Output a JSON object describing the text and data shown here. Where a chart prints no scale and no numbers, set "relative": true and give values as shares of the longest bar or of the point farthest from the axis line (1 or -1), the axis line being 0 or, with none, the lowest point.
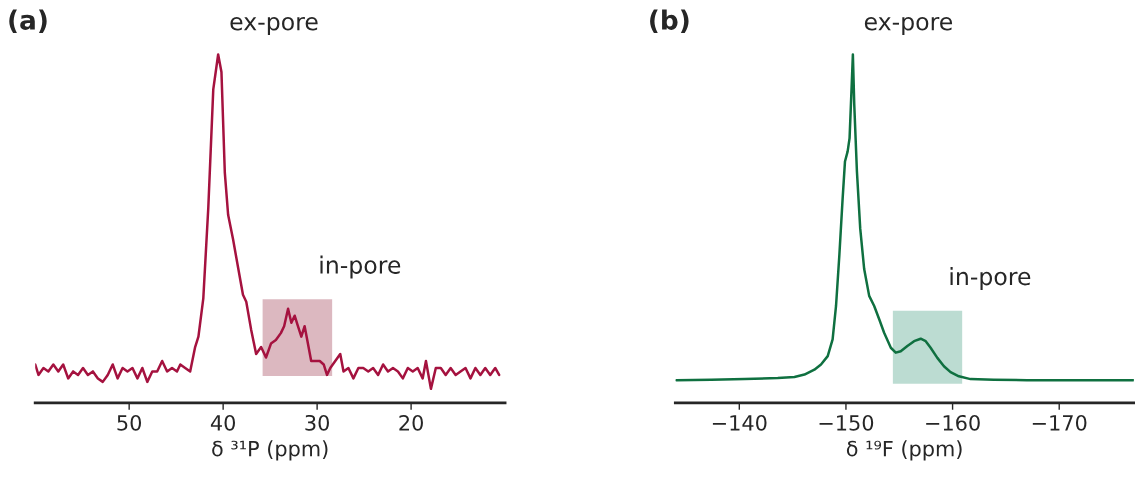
{
  "chart_data": [
    {
      "type": "line",
      "title": "(a)",
      "xlabel": "δ ³¹P (ppm)",
      "relative": true,
      "xlim": [
        60,
        10
      ],
      "xticks": [
        50,
        40,
        30,
        20
      ],
      "grid": false,
      "legend": false,
      "annotations": [
        {
          "text": "ex-pore",
          "x": 40.5,
          "y": 1.0
        }
      ],
      "bands": [
        {
          "axis": "x",
          "from": 35.8,
          "to": 28.4,
          "label": "in-pore",
          "color": "#dcb8c0"
        }
      ],
      "x": [
        60.0,
        59.65,
        59.12,
        58.6,
        58.07,
        57.54,
        57.02,
        56.49,
        55.96,
        55.44,
        54.91,
        54.39,
        53.86,
        53.33,
        52.81,
        52.28,
        51.75,
        51.23,
        50.7,
        50.18,
        49.65,
        49.12,
        48.6,
        48.07,
        47.54,
        47.02,
        46.49,
        45.96,
        45.44,
        44.91,
        44.56,
        44.04,
        43.51,
        42.98,
        42.63,
        42.11,
        41.58,
        41.05,
        40.53,
        40.18,
        39.82,
        39.47,
        38.95,
        38.42,
        37.89,
        37.54,
        37.02,
        36.49,
        35.96,
        35.44,
        34.91,
        34.39,
        33.86,
        33.51,
        33.09,
        32.74,
        32.39,
        32.04,
        31.68,
        31.33,
        31.05,
        30.63,
        30.18,
        29.72,
        29.3,
        28.95,
        28.6,
        28.07,
        27.54,
        27.19,
        26.67,
        26.14,
        25.61,
        25.09,
        24.56,
        24.04,
        23.51,
        22.98,
        22.46,
        21.93,
        21.4,
        20.88,
        20.35,
        19.82,
        19.3,
        18.77,
        18.42,
        17.89,
        17.37,
        16.84,
        16.32,
        15.79,
        15.26,
        14.74,
        14.21,
        13.68,
        13.16,
        12.63,
        12.11,
        11.58,
        11.05,
        10.63
      ],
      "series": [
        {
          "color": "#a5123f",
          "values": [
            0.11,
            0.08,
            0.1,
            0.09,
            0.11,
            0.09,
            0.11,
            0.07,
            0.09,
            0.08,
            0.1,
            0.08,
            0.09,
            0.07,
            0.06,
            0.08,
            0.11,
            0.07,
            0.1,
            0.09,
            0.1,
            0.07,
            0.1,
            0.06,
            0.09,
            0.09,
            0.12,
            0.09,
            0.1,
            0.09,
            0.11,
            0.1,
            0.09,
            0.16,
            0.19,
            0.3,
            0.56,
            0.9,
            1.0,
            0.95,
            0.66,
            0.54,
            0.47,
            0.39,
            0.31,
            0.29,
            0.21,
            0.14,
            0.16,
            0.13,
            0.17,
            0.18,
            0.2,
            0.22,
            0.27,
            0.23,
            0.25,
            0.22,
            0.19,
            0.22,
            0.18,
            0.12,
            0.12,
            0.12,
            0.11,
            0.08,
            0.1,
            0.12,
            0.14,
            0.09,
            0.1,
            0.07,
            0.1,
            0.1,
            0.09,
            0.1,
            0.08,
            0.11,
            0.09,
            0.1,
            0.09,
            0.07,
            0.1,
            0.09,
            0.1,
            0.07,
            0.12,
            0.04,
            0.1,
            0.1,
            0.08,
            0.1,
            0.08,
            0.09,
            0.1,
            0.07,
            0.1,
            0.08,
            0.1,
            0.08,
            0.1,
            0.08
          ]
        }
      ]
    },
    {
      "type": "line",
      "title": "(b)",
      "xlabel": "δ ¹⁹F (ppm)",
      "relative": true,
      "xlim": [
        -134,
        -177
      ],
      "xticks": [
        {
          "value": -140,
          "label": "−140"
        },
        {
          "value": -150,
          "label": "−150"
        },
        {
          "value": -160,
          "label": "−160"
        },
        {
          "value": -170,
          "label": "−170"
        }
      ],
      "grid": false,
      "legend": false,
      "annotations": [
        {
          "text": "ex-pore",
          "x": -150.65,
          "y": 1.0
        }
      ],
      "bands": [
        {
          "axis": "x",
          "from": -154.4,
          "to": -160.9,
          "label": "in-pore",
          "color": "#bcdcd2"
        }
      ],
      "x": [
        -134.11,
        -137.38,
        -140.5,
        -143.61,
        -145.17,
        -146.11,
        -147.04,
        -147.66,
        -148.29,
        -148.75,
        -149.07,
        -149.38,
        -149.69,
        -149.91,
        -150.16,
        -150.34,
        -150.53,
        -150.65,
        -150.78,
        -151.03,
        -151.34,
        -151.71,
        -152.18,
        -152.65,
        -153.12,
        -153.58,
        -154.21,
        -154.67,
        -155.14,
        -155.76,
        -156.39,
        -157.01,
        -157.48,
        -157.94,
        -158.57,
        -159.19,
        -159.81,
        -160.59,
        -161.68,
        -163.86,
        -166.98,
        -170.09,
        -173.21,
        -176.95
      ],
      "series": [
        {
          "color": "#0f7040",
          "values": [
            0.065,
            0.066,
            0.068,
            0.071,
            0.074,
            0.081,
            0.095,
            0.11,
            0.134,
            0.182,
            0.278,
            0.423,
            0.587,
            0.693,
            0.722,
            0.76,
            0.905,
            1.0,
            0.856,
            0.664,
            0.5,
            0.384,
            0.307,
            0.278,
            0.24,
            0.201,
            0.158,
            0.144,
            0.148,
            0.163,
            0.177,
            0.184,
            0.177,
            0.158,
            0.129,
            0.105,
            0.088,
            0.076,
            0.068,
            0.066,
            0.065,
            0.065,
            0.065,
            0.065
          ]
        }
      ]
    }
  ]
}
